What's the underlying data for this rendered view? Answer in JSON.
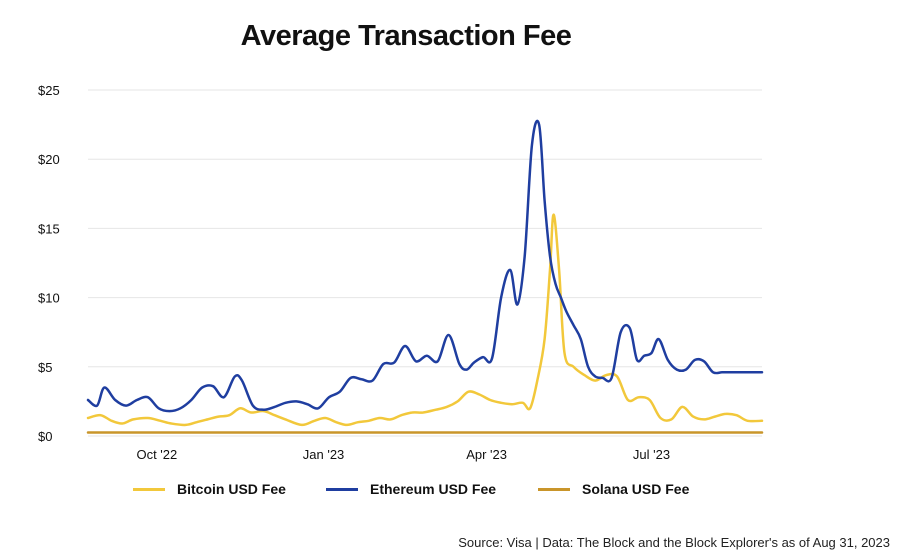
{
  "chart_data": {
    "type": "line",
    "title": "Average Transaction Fee",
    "source": "Source: Visa  |  Data: The Block and the Block Explorer's as of Aug 31, 2023",
    "xlim": [
      "2022-08-24",
      "2023-08-31"
    ],
    "ylim": [
      0,
      25
    ],
    "y_ticks": [
      0,
      5,
      10,
      15,
      20,
      25
    ],
    "y_tick_labels": [
      "$0",
      "$5",
      "$10",
      "$15",
      "$20",
      "$25"
    ],
    "x_ticks": [
      "2022-10-01",
      "2023-01-01",
      "2023-04-01",
      "2023-07-01"
    ],
    "x_tick_labels": [
      "Oct '22",
      "Jan '23",
      "Apr '23",
      "Jul '23"
    ],
    "grid": "horizontal",
    "legend_position": "bottom",
    "series": [
      {
        "name": "Bitcoin USD Fee",
        "color": "#f2c83b",
        "dates": [
          "2022-08-24",
          "2022-08-31",
          "2022-09-06",
          "2022-09-12",
          "2022-09-18",
          "2022-09-26",
          "2022-10-03",
          "2022-10-09",
          "2022-10-17",
          "2022-10-23",
          "2022-10-29",
          "2022-11-04",
          "2022-11-10",
          "2022-11-16",
          "2022-11-22",
          "2022-11-29",
          "2022-12-05",
          "2022-12-11",
          "2022-12-20",
          "2022-12-27",
          "2023-01-02",
          "2023-01-08",
          "2023-01-14",
          "2023-01-20",
          "2023-01-26",
          "2023-02-01",
          "2023-02-07",
          "2023-02-13",
          "2023-02-19",
          "2023-02-25",
          "2023-03-04",
          "2023-03-10",
          "2023-03-16",
          "2023-03-22",
          "2023-03-28",
          "2023-04-03",
          "2023-04-09",
          "2023-04-15",
          "2023-04-21",
          "2023-04-25",
          "2023-04-29",
          "2023-05-03",
          "2023-05-06",
          "2023-05-08",
          "2023-05-11",
          "2023-05-14",
          "2023-05-19",
          "2023-05-25",
          "2023-05-31",
          "2023-06-06",
          "2023-06-12",
          "2023-06-18",
          "2023-06-24",
          "2023-06-30",
          "2023-07-06",
          "2023-07-12",
          "2023-07-18",
          "2023-07-24",
          "2023-07-30",
          "2023-08-05",
          "2023-08-11",
          "2023-08-17",
          "2023-08-23",
          "2023-08-31"
        ],
        "values": [
          1.3,
          1.5,
          1.1,
          0.9,
          1.2,
          1.3,
          1.1,
          0.9,
          0.8,
          1.0,
          1.2,
          1.4,
          1.5,
          2.0,
          1.7,
          1.8,
          1.5,
          1.2,
          0.8,
          1.1,
          1.3,
          1.0,
          0.8,
          1.0,
          1.1,
          1.3,
          1.2,
          1.5,
          1.7,
          1.7,
          1.9,
          2.1,
          2.5,
          3.2,
          3.0,
          2.6,
          2.4,
          2.3,
          2.4,
          2.0,
          4.0,
          7.0,
          12.0,
          16.0,
          12.0,
          6.0,
          5.0,
          4.4,
          4.0,
          4.4,
          4.3,
          2.6,
          2.8,
          2.6,
          1.3,
          1.2,
          2.1,
          1.4,
          1.2,
          1.4,
          1.6,
          1.5,
          1.1,
          1.1
        ]
      },
      {
        "name": "Ethereum USD Fee",
        "color": "#1f3ea0",
        "dates": [
          "2022-08-24",
          "2022-08-29",
          "2022-09-02",
          "2022-09-08",
          "2022-09-14",
          "2022-09-20",
          "2022-09-26",
          "2022-10-02",
          "2022-10-08",
          "2022-10-14",
          "2022-10-20",
          "2022-10-26",
          "2022-11-01",
          "2022-11-07",
          "2022-11-13",
          "2022-11-17",
          "2022-11-23",
          "2022-11-29",
          "2022-12-05",
          "2022-12-11",
          "2022-12-17",
          "2022-12-23",
          "2022-12-29",
          "2023-01-04",
          "2023-01-10",
          "2023-01-16",
          "2023-01-22",
          "2023-01-28",
          "2023-02-03",
          "2023-02-09",
          "2023-02-15",
          "2023-02-21",
          "2023-02-27",
          "2023-03-05",
          "2023-03-11",
          "2023-03-17",
          "2023-03-21",
          "2023-03-25",
          "2023-03-30",
          "2023-04-04",
          "2023-04-09",
          "2023-04-14",
          "2023-04-18",
          "2023-04-22",
          "2023-04-26",
          "2023-04-30",
          "2023-05-03",
          "2023-05-06",
          "2023-05-09",
          "2023-05-12",
          "2023-05-15",
          "2023-05-19",
          "2023-05-23",
          "2023-05-27",
          "2023-05-31",
          "2023-06-04",
          "2023-06-09",
          "2023-06-14",
          "2023-06-19",
          "2023-06-23",
          "2023-06-27",
          "2023-07-01",
          "2023-07-05",
          "2023-07-10",
          "2023-07-15",
          "2023-07-20",
          "2023-07-25",
          "2023-07-30",
          "2023-08-04",
          "2023-08-09",
          "2023-08-14",
          "2023-08-19",
          "2023-08-24",
          "2023-08-28",
          "2023-08-31"
        ],
        "values": [
          2.6,
          2.2,
          3.5,
          2.6,
          2.2,
          2.6,
          2.8,
          2.0,
          1.8,
          2.0,
          2.6,
          3.5,
          3.6,
          2.8,
          4.3,
          4.0,
          2.2,
          1.9,
          2.1,
          2.4,
          2.5,
          2.3,
          2.0,
          2.8,
          3.2,
          4.2,
          4.1,
          4.0,
          5.2,
          5.3,
          6.5,
          5.4,
          5.8,
          5.4,
          7.3,
          5.2,
          4.8,
          5.3,
          5.7,
          5.6,
          10.0,
          12.0,
          9.5,
          13.0,
          21.0,
          22.5,
          17.0,
          13.0,
          11.0,
          10.0,
          9.0,
          8.0,
          7.0,
          5.0,
          4.3,
          4.2,
          4.2,
          7.5,
          7.8,
          5.5,
          5.8,
          6.0,
          7.0,
          5.5,
          4.8,
          4.8,
          5.5,
          5.4,
          4.6,
          4.6,
          4.6,
          4.6,
          4.6,
          4.6,
          4.6
        ]
      },
      {
        "name": "Solana USD Fee",
        "color": "#c9952a",
        "dates": [
          "2022-08-24",
          "2023-08-31"
        ],
        "values": [
          0.25,
          0.25
        ]
      }
    ]
  }
}
